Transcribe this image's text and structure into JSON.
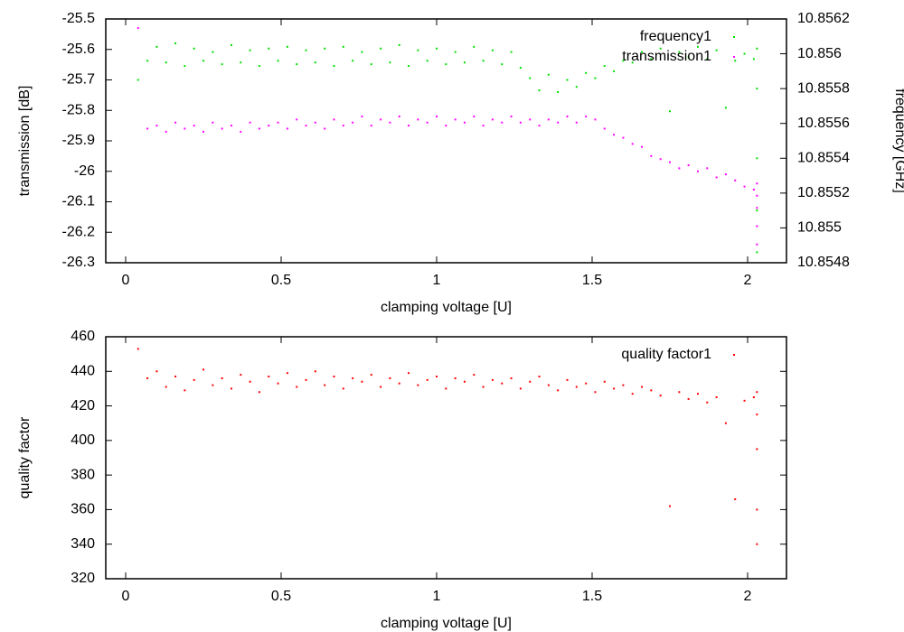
{
  "chart_data": [
    {
      "type": "scatter",
      "xlabel": "clamping voltage [U]",
      "ylabel": "transmission [dB]",
      "y2label": "frequency [GHz]",
      "xlim": [
        -0.064,
        2.125
      ],
      "xticks": [
        0,
        0.5,
        1,
        1.5,
        2
      ],
      "ylim": [
        -26.3,
        -25.5
      ],
      "yticks": [
        -25.5,
        -25.6,
        -25.7,
        -25.8,
        -25.9,
        -26,
        -26.1,
        -26.2,
        -26.3
      ],
      "y2lim": [
        10.8548,
        10.8562
      ],
      "y2ticks": [
        10.8548,
        10.855,
        10.8552,
        10.8554,
        10.8556,
        10.8558,
        10.856,
        10.8562
      ],
      "legend": "top-right",
      "x": [
        0.04,
        0.07,
        0.1,
        0.13,
        0.16,
        0.19,
        0.22,
        0.25,
        0.28,
        0.31,
        0.34,
        0.37,
        0.4,
        0.43,
        0.46,
        0.49,
        0.52,
        0.55,
        0.58,
        0.61,
        0.64,
        0.67,
        0.7,
        0.73,
        0.76,
        0.79,
        0.82,
        0.85,
        0.88,
        0.91,
        0.94,
        0.97,
        1.0,
        1.03,
        1.06,
        1.09,
        1.12,
        1.15,
        1.18,
        1.21,
        1.24,
        1.27,
        1.3,
        1.33,
        1.36,
        1.39,
        1.42,
        1.45,
        1.48,
        1.51,
        1.54,
        1.57,
        1.6,
        1.63,
        1.66,
        1.69,
        1.72,
        1.75,
        1.78,
        1.81,
        1.84,
        1.87,
        1.9,
        1.93,
        1.96,
        1.99,
        2.02,
        2.03,
        2.03,
        2.03,
        2.03,
        2.03
      ],
      "series": [
        {
          "name": "frequency1",
          "color": "#00e000",
          "axis": "y2",
          "values": [
            10.85585,
            10.85596,
            10.85604,
            10.85595,
            10.85606,
            10.85593,
            10.85603,
            10.85596,
            10.85601,
            10.85594,
            10.85605,
            10.85595,
            10.85602,
            10.85593,
            10.85603,
            10.85596,
            10.85604,
            10.85594,
            10.85602,
            10.85595,
            10.85603,
            10.85593,
            10.85604,
            10.85596,
            10.85601,
            10.85594,
            10.85603,
            10.85595,
            10.85605,
            10.85593,
            10.85602,
            10.85596,
            10.85603,
            10.85594,
            10.85601,
            10.85595,
            10.85604,
            10.85596,
            10.85602,
            10.85594,
            10.85601,
            10.85592,
            10.85586,
            10.85579,
            10.85588,
            10.85578,
            10.85585,
            10.85581,
            10.85589,
            10.85586,
            10.85593,
            10.8559,
            10.85596,
            10.85595,
            10.85601,
            10.85597,
            10.85603,
            10.85567,
            10.85601,
            10.85598,
            10.85604,
            10.85597,
            10.85602,
            10.85569,
            10.85596,
            10.856,
            10.85597,
            10.85603,
            10.8558,
            10.8554,
            10.8551,
            10.85486
          ]
        },
        {
          "name": "transmission1",
          "color": "#ff00ff",
          "values": [
            -25.53,
            -25.86,
            -25.85,
            -25.87,
            -25.84,
            -25.86,
            -25.85,
            -25.87,
            -25.84,
            -25.86,
            -25.85,
            -25.87,
            -25.84,
            -25.86,
            -25.85,
            -25.84,
            -25.86,
            -25.83,
            -25.85,
            -25.84,
            -25.86,
            -25.83,
            -25.85,
            -25.84,
            -25.82,
            -25.85,
            -25.83,
            -25.84,
            -25.82,
            -25.85,
            -25.83,
            -25.84,
            -25.82,
            -25.85,
            -25.83,
            -25.84,
            -25.82,
            -25.85,
            -25.83,
            -25.84,
            -25.82,
            -25.84,
            -25.83,
            -25.85,
            -25.83,
            -25.84,
            -25.82,
            -25.84,
            -25.82,
            -25.83,
            -25.86,
            -25.88,
            -25.89,
            -25.91,
            -25.92,
            -25.95,
            -25.96,
            -25.97,
            -25.99,
            -25.98,
            -26.0,
            -25.99,
            -26.02,
            -26.01,
            -26.03,
            -26.05,
            -26.06,
            -26.04,
            -26.08,
            -26.12,
            -26.18,
            -26.24
          ]
        }
      ]
    },
    {
      "type": "scatter",
      "xlabel": "clamping voltage [U]",
      "ylabel": "quality factor",
      "xlim": [
        -0.064,
        2.125
      ],
      "xticks": [
        0,
        0.5,
        1,
        1.5,
        2
      ],
      "ylim": [
        320,
        460
      ],
      "yticks": [
        320,
        340,
        360,
        380,
        400,
        420,
        440,
        460
      ],
      "legend": "top-right",
      "x": [
        0.04,
        0.07,
        0.1,
        0.13,
        0.16,
        0.19,
        0.22,
        0.25,
        0.28,
        0.31,
        0.34,
        0.37,
        0.4,
        0.43,
        0.46,
        0.49,
        0.52,
        0.55,
        0.58,
        0.61,
        0.64,
        0.67,
        0.7,
        0.73,
        0.76,
        0.79,
        0.82,
        0.85,
        0.88,
        0.91,
        0.94,
        0.97,
        1.0,
        1.03,
        1.06,
        1.09,
        1.12,
        1.15,
        1.18,
        1.21,
        1.24,
        1.27,
        1.3,
        1.33,
        1.36,
        1.39,
        1.42,
        1.45,
        1.48,
        1.51,
        1.54,
        1.57,
        1.6,
        1.63,
        1.66,
        1.69,
        1.72,
        1.75,
        1.78,
        1.81,
        1.84,
        1.87,
        1.9,
        1.93,
        1.96,
        1.99,
        2.02,
        2.03,
        2.03,
        2.03,
        2.03,
        2.03
      ],
      "series": [
        {
          "name": "quality factor1",
          "color": "#ff0000",
          "values": [
            453,
            436,
            440,
            431,
            437,
            429,
            435,
            441,
            432,
            436,
            430,
            438,
            434,
            428,
            437,
            433,
            439,
            431,
            435,
            440,
            432,
            437,
            430,
            436,
            434,
            438,
            431,
            436,
            433,
            439,
            432,
            435,
            437,
            430,
            436,
            434,
            438,
            431,
            435,
            433,
            436,
            430,
            434,
            437,
            432,
            429,
            435,
            431,
            433,
            428,
            434,
            430,
            432,
            427,
            431,
            429,
            426,
            362,
            428,
            424,
            427,
            422,
            425,
            410,
            366,
            423,
            425,
            428,
            415,
            395,
            360,
            340
          ]
        }
      ]
    }
  ]
}
